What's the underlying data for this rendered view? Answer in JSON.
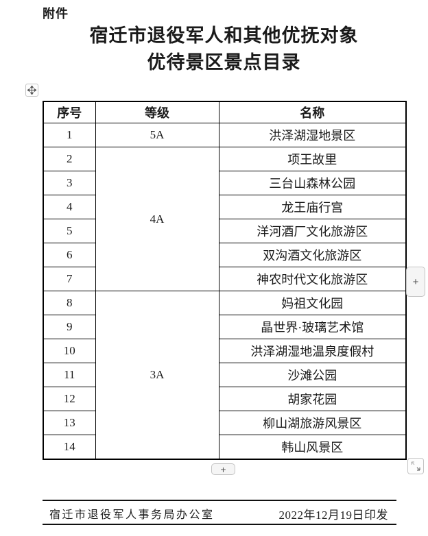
{
  "page": {
    "attachment_label": "附件",
    "title_line1": "宿迁市退役军人和其他优抚对象",
    "title_line2": "优待景区景点目录"
  },
  "table": {
    "headers": [
      "序号",
      "等级",
      "名称"
    ],
    "rows": [
      {
        "no": "1",
        "grade": "5A",
        "grade_rowspan": 1,
        "name": "洪泽湖湿地景区"
      },
      {
        "no": "2",
        "grade": "4A",
        "grade_rowspan": 6,
        "name": "项王故里"
      },
      {
        "no": "3",
        "name": "三台山森林公园"
      },
      {
        "no": "4",
        "name": "龙王庙行宫"
      },
      {
        "no": "5",
        "name": "洋河酒厂文化旅游区"
      },
      {
        "no": "6",
        "name": "双沟酒文化旅游区"
      },
      {
        "no": "7",
        "name": "神农时代文化旅游区"
      },
      {
        "no": "8",
        "grade": "3A",
        "grade_rowspan": 7,
        "name": "妈祖文化园"
      },
      {
        "no": "9",
        "name": "晶世界·玻璃艺术馆"
      },
      {
        "no": "10",
        "name": "洪泽湖湿地温泉度假村"
      },
      {
        "no": "11",
        "name": "沙滩公园"
      },
      {
        "no": "12",
        "name": "胡家花园"
      },
      {
        "no": "13",
        "name": "柳山湖旅游风景区"
      },
      {
        "no": "14",
        "name": "韩山风景区"
      }
    ]
  },
  "controls": {
    "insert_column_label": "+",
    "insert_row_label": "+"
  },
  "footer": {
    "issuer": "宿迁市退役军人事务局办公室",
    "date": "2022年12月19日印发"
  },
  "colors": {
    "text": "#1a1a1a",
    "table_border": "#000000",
    "control_border": "#c3c3c3",
    "control_bg": "#f5f5f5"
  }
}
